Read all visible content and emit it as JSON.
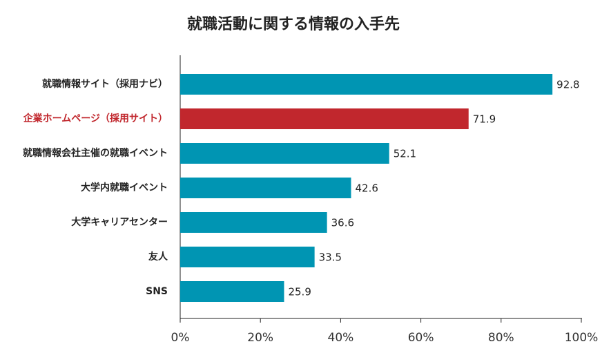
{
  "chart_data": {
    "type": "barh",
    "title": "就職活動に関する情報の入手先",
    "categories": [
      "就職情報サイト（採用ナビ）",
      "企業ホームページ（採用サイト）",
      "就職情報会社主催の就職イベント",
      "大学内就職イベント",
      "大学キャリアセンター",
      "友人",
      "SNS"
    ],
    "values": [
      92.8,
      71.9,
      52.1,
      42.6,
      36.6,
      33.5,
      25.9
    ],
    "colors": [
      "#0095b3",
      "#c1272d",
      "#0095b3",
      "#0095b3",
      "#0095b3",
      "#0095b3",
      "#0095b3"
    ],
    "label_colors": [
      "#222222",
      "#c1272d",
      "#222222",
      "#222222",
      "#222222",
      "#222222",
      "#222222"
    ],
    "xlim": [
      0,
      100
    ],
    "xticks": [
      {
        "value": 0,
        "label": "0%"
      },
      {
        "value": 20,
        "label": "20%"
      },
      {
        "value": 40,
        "label": "40%"
      },
      {
        "value": 60,
        "label": "60%"
      },
      {
        "value": 80,
        "label": "80%"
      },
      {
        "value": 100,
        "label": "100%"
      }
    ],
    "grid": false
  }
}
